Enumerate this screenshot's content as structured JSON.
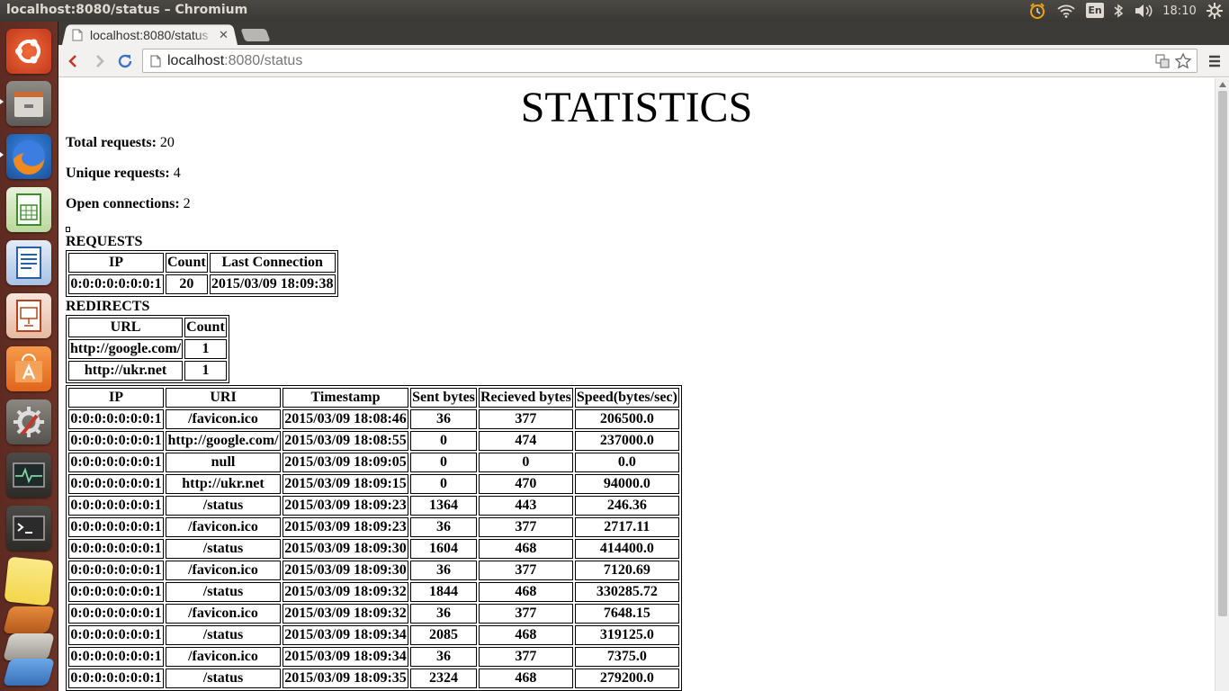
{
  "panel": {
    "window_title": "localhost:8080/status – Chromium",
    "language": "En",
    "clock": "18:10"
  },
  "launcher": {
    "icons": [
      "ubuntu-dash-icon",
      "files-icon",
      "firefox-icon",
      "libreoffice-calc-icon",
      "libreoffice-writer-icon",
      "libreoffice-impress-icon",
      "software-center-icon",
      "system-settings-icon",
      "system-monitor-icon",
      "terminal-icon",
      "notes-icon",
      "trash-stack-icon"
    ]
  },
  "browser": {
    "tab_title": "localhost:8080/status",
    "url_host": "localhost",
    "url_rest": ":8080/status"
  },
  "page": {
    "title": "STATISTICS",
    "total_requests_label": "Total requests:",
    "total_requests": "20",
    "unique_requests_label": "Unique requests:",
    "unique_requests": "4",
    "open_connections_label": "Open connections:",
    "open_connections": "2",
    "requests_title": "REQUESTS",
    "requests_table": {
      "headers": [
        "IP",
        "Count",
        "Last Connection"
      ],
      "rows": [
        [
          "0:0:0:0:0:0:0:1",
          "20",
          "2015/03/09 18:09:38"
        ]
      ]
    },
    "redirects_title": "REDIRECTS",
    "redirects_table": {
      "headers": [
        "URL",
        "Count"
      ],
      "rows": [
        [
          "http://google.com/",
          "1"
        ],
        [
          "http://ukr.net",
          "1"
        ]
      ]
    },
    "connections_table": {
      "headers": [
        "IP",
        "URI",
        "Timestamp",
        "Sent bytes",
        "Recieved bytes",
        "Speed(bytes/sec)"
      ],
      "rows": [
        [
          "0:0:0:0:0:0:0:1",
          "/favicon.ico",
          "2015/03/09 18:08:46",
          "36",
          "377",
          "206500.0"
        ],
        [
          "0:0:0:0:0:0:0:1",
          "http://google.com/",
          "2015/03/09 18:08:55",
          "0",
          "474",
          "237000.0"
        ],
        [
          "0:0:0:0:0:0:0:1",
          "null",
          "2015/03/09 18:09:05",
          "0",
          "0",
          "0.0"
        ],
        [
          "0:0:0:0:0:0:0:1",
          "http://ukr.net",
          "2015/03/09 18:09:15",
          "0",
          "470",
          "94000.0"
        ],
        [
          "0:0:0:0:0:0:0:1",
          "/status",
          "2015/03/09 18:09:23",
          "1364",
          "443",
          "246.36"
        ],
        [
          "0:0:0:0:0:0:0:1",
          "/favicon.ico",
          "2015/03/09 18:09:23",
          "36",
          "377",
          "2717.11"
        ],
        [
          "0:0:0:0:0:0:0:1",
          "/status",
          "2015/03/09 18:09:30",
          "1604",
          "468",
          "414400.0"
        ],
        [
          "0:0:0:0:0:0:0:1",
          "/favicon.ico",
          "2015/03/09 18:09:30",
          "36",
          "377",
          "7120.69"
        ],
        [
          "0:0:0:0:0:0:0:1",
          "/status",
          "2015/03/09 18:09:32",
          "1844",
          "468",
          "330285.72"
        ],
        [
          "0:0:0:0:0:0:0:1",
          "/favicon.ico",
          "2015/03/09 18:09:32",
          "36",
          "377",
          "7648.15"
        ],
        [
          "0:0:0:0:0:0:0:1",
          "/status",
          "2015/03/09 18:09:34",
          "2085",
          "468",
          "319125.0"
        ],
        [
          "0:0:0:0:0:0:0:1",
          "/favicon.ico",
          "2015/03/09 18:09:34",
          "36",
          "377",
          "7375.0"
        ],
        [
          "0:0:0:0:0:0:0:1",
          "/status",
          "2015/03/09 18:09:35",
          "2324",
          "468",
          "279200.0"
        ]
      ]
    }
  }
}
